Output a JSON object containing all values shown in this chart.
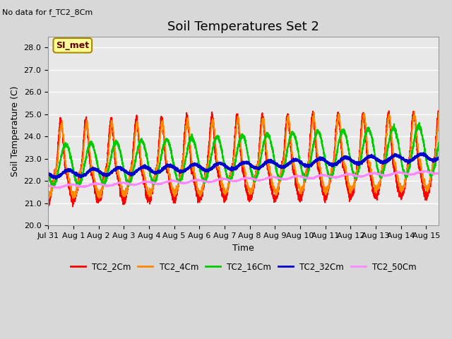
{
  "title": "Soil Temperatures Set 2",
  "subtitle": "No data for f_TC2_8Cm",
  "xlabel": "Time",
  "ylabel": "Soil Temperature (C)",
  "ylim": [
    20.0,
    28.5
  ],
  "yticks": [
    20.0,
    21.0,
    22.0,
    23.0,
    24.0,
    25.0,
    26.0,
    27.0,
    28.0
  ],
  "x_tick_labels": [
    "Jul 31",
    "Aug 1",
    "Aug 2",
    "Aug 3",
    "Aug 4",
    "Aug 5",
    "Aug 6",
    "Aug 7",
    "Aug 8",
    "Aug 9",
    "Aug 10",
    "Aug 11",
    "Aug 12",
    "Aug 13",
    "Aug 14",
    "Aug 15"
  ],
  "x_tick_positions": [
    0,
    1,
    2,
    3,
    4,
    5,
    6,
    7,
    8,
    9,
    10,
    11,
    12,
    13,
    14,
    15
  ],
  "series": [
    {
      "name": "TC2_2Cm",
      "color": "#ff0000",
      "lw": 1.2
    },
    {
      "name": "TC2_4Cm",
      "color": "#ff8800",
      "lw": 1.2
    },
    {
      "name": "TC2_16Cm",
      "color": "#00cc00",
      "lw": 1.5
    },
    {
      "name": "TC2_32Cm",
      "color": "#0000cc",
      "lw": 1.8
    },
    {
      "name": "TC2_50Cm",
      "color": "#ff88ff",
      "lw": 1.2
    }
  ],
  "annotation_text": "SI_met",
  "bg_color": "#e8e8e8",
  "fig_bg_color": "#d8d8d8",
  "title_fontsize": 13,
  "label_fontsize": 9,
  "tick_fontsize": 8
}
